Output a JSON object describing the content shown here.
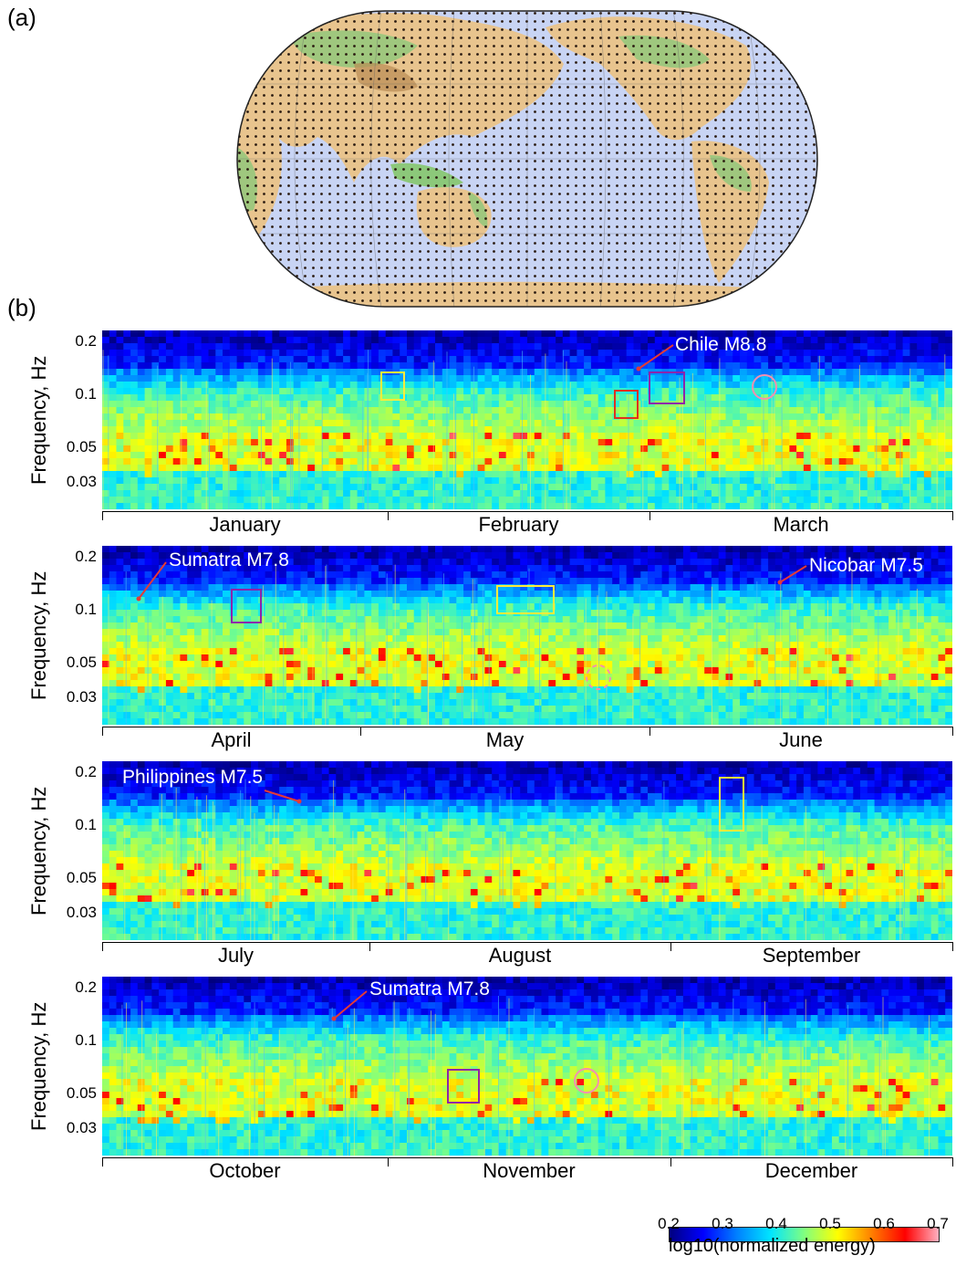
{
  "panels": {
    "a": "(a)",
    "b": "(b)"
  },
  "yaxis": {
    "label": "Frequency, Hz",
    "ticks": [
      "0.2",
      "0.1",
      "0.05",
      "0.03"
    ]
  },
  "rows": [
    {
      "months": [
        "January",
        "February",
        "March"
      ],
      "annotations": [
        {
          "text": "Chile M8.8"
        }
      ]
    },
    {
      "months": [
        "April",
        "May",
        "June"
      ],
      "annotations": [
        {
          "text": "Sumatra M7.8"
        },
        {
          "text": "Nicobar M7.5"
        }
      ]
    },
    {
      "months": [
        "July",
        "August",
        "September"
      ],
      "annotations": [
        {
          "text": "Philippines M7.5"
        }
      ]
    },
    {
      "months": [
        "October",
        "November",
        "December"
      ],
      "annotations": [
        {
          "text": "Sumatra M7.8"
        }
      ]
    }
  ],
  "colorbar": {
    "ticks": [
      "0.2",
      "0.3",
      "0.4",
      "0.5",
      "0.6",
      "0.7"
    ],
    "label": "log10(normalized energy)",
    "colors": [
      "#00007f",
      "#0000ff",
      "#0080ff",
      "#00e5ff",
      "#80ff80",
      "#ffff00",
      "#ff8000",
      "#ff0000",
      "#ffb0c0"
    ]
  },
  "colors": {
    "ocean": "#c8d4f4",
    "land": "#e8c48e",
    "vegetation": "#8cc87a",
    "grid_dot": "#2a1a10"
  }
}
